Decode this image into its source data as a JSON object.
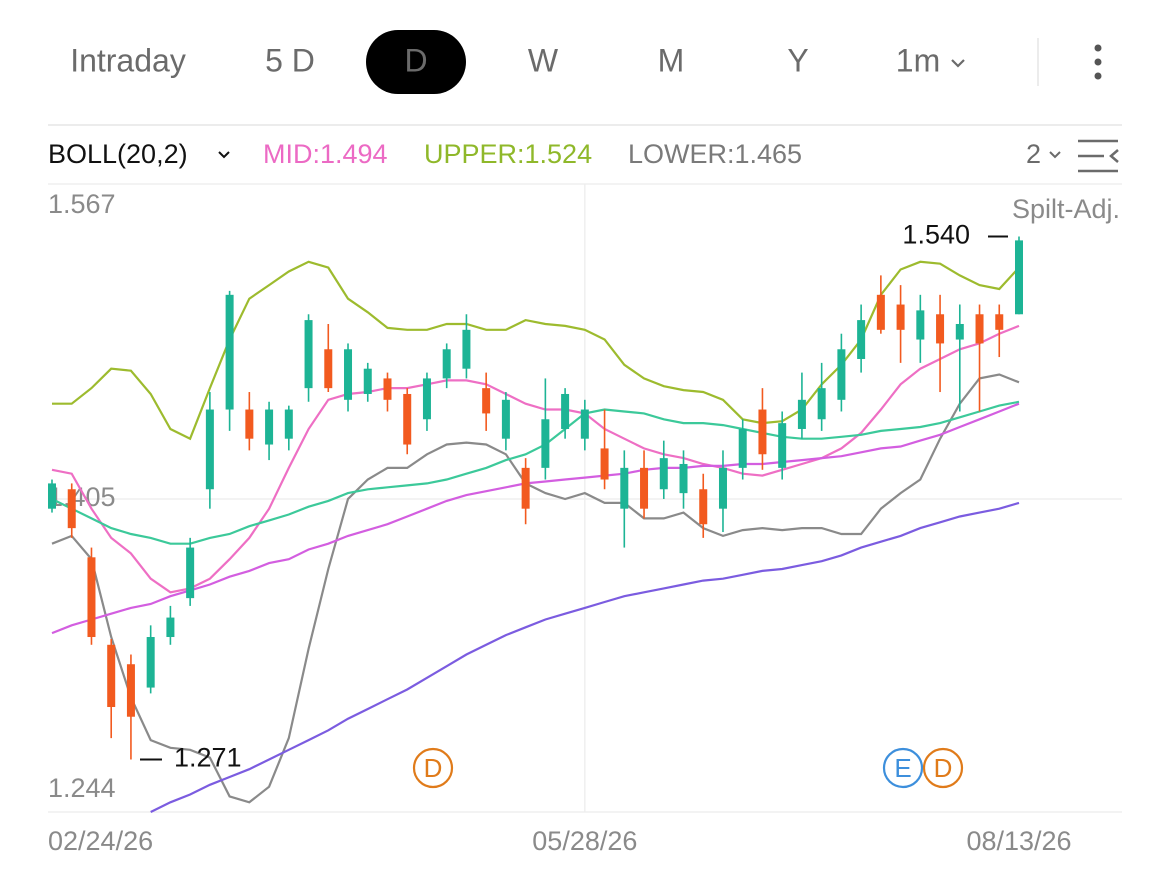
{
  "tabs": [
    "Intraday",
    "5 D",
    "D",
    "W",
    "M",
    "Y",
    "1m"
  ],
  "selected_tab": 2,
  "indicator": {
    "name": "BOLL(20,2)",
    "labels": [
      {
        "text": "MID:1.494",
        "color": "#ec6ac4"
      },
      {
        "text": "UPPER:1.524",
        "color": "#8fb82a"
      },
      {
        "text": "LOWER:1.465",
        "color": "#7a7a7a"
      }
    ],
    "count": "2"
  },
  "chart_data": {
    "type": "candlestick",
    "note": "Spilt-Adj.",
    "ylim": [
      1.244,
      1.567
    ],
    "yticks": [
      1.567,
      1.405,
      1.244
    ],
    "xlim": [
      0,
      49
    ],
    "xticks": [
      {
        "value": 0,
        "label": "02/24/26"
      },
      {
        "value": 27,
        "label": "05/28/26"
      },
      {
        "value": 49,
        "label": "08/13/26"
      }
    ],
    "up_color": "#1db495",
    "down_color": "#f25a1f",
    "open": [
      1.4,
      1.41,
      1.375,
      1.33,
      1.32,
      1.308,
      1.334,
      1.354,
      1.41,
      1.451,
      1.451,
      1.433,
      1.436,
      1.462,
      1.482,
      1.456,
      1.459,
      1.467,
      1.459,
      1.446,
      1.467,
      1.472,
      1.462,
      1.436,
      1.421,
      1.421,
      1.441,
      1.436,
      1.431,
      1.4,
      1.421,
      1.41,
      1.408,
      1.41,
      1.4,
      1.421,
      1.451,
      1.421,
      1.441,
      1.446,
      1.456,
      1.477,
      1.51,
      1.505,
      1.487,
      1.5,
      1.487,
      1.5,
      1.5,
      1.5
    ],
    "high": [
      1.415,
      1.413,
      1.38,
      1.333,
      1.325,
      1.34,
      1.35,
      1.385,
      1.46,
      1.512,
      1.46,
      1.455,
      1.453,
      1.5,
      1.495,
      1.485,
      1.475,
      1.47,
      1.462,
      1.47,
      1.485,
      1.5,
      1.47,
      1.46,
      1.426,
      1.467,
      1.462,
      1.456,
      1.451,
      1.43,
      1.43,
      1.435,
      1.43,
      1.418,
      1.43,
      1.446,
      1.462,
      1.45,
      1.47,
      1.475,
      1.49,
      1.505,
      1.52,
      1.515,
      1.51,
      1.51,
      1.505,
      1.505,
      1.505,
      1.54
    ],
    "low": [
      1.398,
      1.385,
      1.33,
      1.282,
      1.271,
      1.305,
      1.33,
      1.35,
      1.4,
      1.44,
      1.43,
      1.425,
      1.43,
      1.455,
      1.46,
      1.45,
      1.455,
      1.45,
      1.428,
      1.44,
      1.462,
      1.467,
      1.44,
      1.43,
      1.392,
      1.415,
      1.436,
      1.43,
      1.41,
      1.38,
      1.395,
      1.405,
      1.4,
      1.385,
      1.388,
      1.415,
      1.42,
      1.415,
      1.436,
      1.44,
      1.45,
      1.47,
      1.49,
      1.475,
      1.475,
      1.46,
      1.45,
      1.45,
      1.478,
      1.5
    ],
    "close": [
      1.413,
      1.39,
      1.334,
      1.298,
      1.293,
      1.334,
      1.344,
      1.38,
      1.451,
      1.51,
      1.436,
      1.451,
      1.451,
      1.497,
      1.462,
      1.482,
      1.472,
      1.456,
      1.433,
      1.467,
      1.482,
      1.492,
      1.449,
      1.456,
      1.4,
      1.446,
      1.459,
      1.451,
      1.415,
      1.421,
      1.4,
      1.426,
      1.423,
      1.392,
      1.421,
      1.441,
      1.428,
      1.444,
      1.456,
      1.462,
      1.482,
      1.497,
      1.492,
      1.492,
      1.502,
      1.485,
      1.495,
      1.485,
      1.492,
      1.538
    ],
    "lines": [
      {
        "color": "#9dbb2e",
        "values": [
          1.454,
          1.454,
          1.462,
          1.472,
          1.471,
          1.459,
          1.441,
          1.436,
          1.462,
          1.487,
          1.508,
          1.515,
          1.522,
          1.527,
          1.524,
          1.508,
          1.501,
          1.493,
          1.492,
          1.492,
          1.495,
          1.495,
          1.492,
          1.492,
          1.497,
          1.495,
          1.494,
          1.492,
          1.487,
          1.474,
          1.467,
          1.463,
          1.461,
          1.46,
          1.456,
          1.446,
          1.444,
          1.445,
          1.451,
          1.464,
          1.474,
          1.487,
          1.51,
          1.523,
          1.527,
          1.526,
          1.52,
          1.515,
          1.513,
          1.524
        ]
      },
      {
        "color": "#ee6fc4",
        "values": [
          1.42,
          1.418,
          1.4,
          1.385,
          1.377,
          1.364,
          1.357,
          1.359,
          1.364,
          1.374,
          1.385,
          1.4,
          1.421,
          1.441,
          1.456,
          1.459,
          1.46,
          1.462,
          1.462,
          1.464,
          1.466,
          1.466,
          1.464,
          1.459,
          1.454,
          1.451,
          1.451,
          1.449,
          1.441,
          1.436,
          1.431,
          1.428,
          1.426,
          1.423,
          1.421,
          1.418,
          1.417,
          1.42,
          1.423,
          1.426,
          1.431,
          1.439,
          1.451,
          1.464,
          1.472,
          1.477,
          1.482,
          1.485,
          1.49,
          1.494
        ]
      },
      {
        "color": "#8a8a8a",
        "values": [
          1.382,
          1.386,
          1.374,
          1.334,
          1.303,
          1.281,
          1.277,
          1.276,
          1.272,
          1.252,
          1.249,
          1.257,
          1.282,
          1.328,
          1.369,
          1.405,
          1.415,
          1.421,
          1.421,
          1.428,
          1.433,
          1.434,
          1.433,
          1.428,
          1.413,
          1.408,
          1.405,
          1.408,
          1.403,
          1.403,
          1.395,
          1.395,
          1.398,
          1.39,
          1.386,
          1.389,
          1.39,
          1.389,
          1.39,
          1.39,
          1.387,
          1.387,
          1.4,
          1.408,
          1.415,
          1.436,
          1.454,
          1.467,
          1.469,
          1.465
        ]
      },
      {
        "color": "#3cc99a",
        "values": [
          1.405,
          1.4,
          1.395,
          1.39,
          1.387,
          1.385,
          1.382,
          1.382,
          1.385,
          1.387,
          1.391,
          1.394,
          1.397,
          1.401,
          1.404,
          1.408,
          1.41,
          1.411,
          1.412,
          1.413,
          1.415,
          1.418,
          1.421,
          1.425,
          1.428,
          1.433,
          1.441,
          1.449,
          1.451,
          1.45,
          1.449,
          1.446,
          1.444,
          1.444,
          1.443,
          1.441,
          1.439,
          1.437,
          1.436,
          1.436,
          1.437,
          1.438,
          1.44,
          1.441,
          1.442,
          1.444,
          1.447,
          1.45,
          1.453,
          1.455
        ]
      },
      {
        "color": "#d35ee0",
        "values": [
          1.336,
          1.34,
          1.343,
          1.346,
          1.349,
          1.351,
          1.355,
          1.358,
          1.361,
          1.365,
          1.368,
          1.372,
          1.374,
          1.379,
          1.382,
          1.386,
          1.389,
          1.392,
          1.396,
          1.4,
          1.404,
          1.407,
          1.409,
          1.411,
          1.413,
          1.414,
          1.415,
          1.416,
          1.417,
          1.418,
          1.42,
          1.421,
          1.421,
          1.422,
          1.422,
          1.423,
          1.423,
          1.424,
          1.425,
          1.426,
          1.427,
          1.429,
          1.431,
          1.432,
          1.435,
          1.438,
          1.442,
          1.446,
          1.45,
          1.454
        ]
      },
      {
        "color": "#7b5ce0",
        "values": [
          null,
          null,
          null,
          null,
          null,
          1.244,
          1.249,
          1.253,
          1.258,
          1.262,
          1.266,
          1.271,
          1.276,
          1.281,
          1.286,
          1.292,
          1.297,
          1.302,
          1.307,
          1.313,
          1.319,
          1.325,
          1.33,
          1.335,
          1.339,
          1.343,
          1.346,
          1.349,
          1.352,
          1.355,
          1.357,
          1.359,
          1.361,
          1.363,
          1.364,
          1.366,
          1.368,
          1.369,
          1.371,
          1.373,
          1.376,
          1.38,
          1.383,
          1.386,
          1.39,
          1.393,
          1.396,
          1.398,
          1.4,
          1.403
        ]
      }
    ],
    "high_label": {
      "value": 1.54,
      "label": "1.540"
    },
    "low_label": {
      "value": 1.271,
      "label": "1.271"
    },
    "events": [
      {
        "label": "D",
        "color": "#e07b1a"
      },
      {
        "label": "E",
        "color": "#3d8fdc"
      },
      {
        "label": "D",
        "color": "#e07b1a"
      }
    ]
  }
}
